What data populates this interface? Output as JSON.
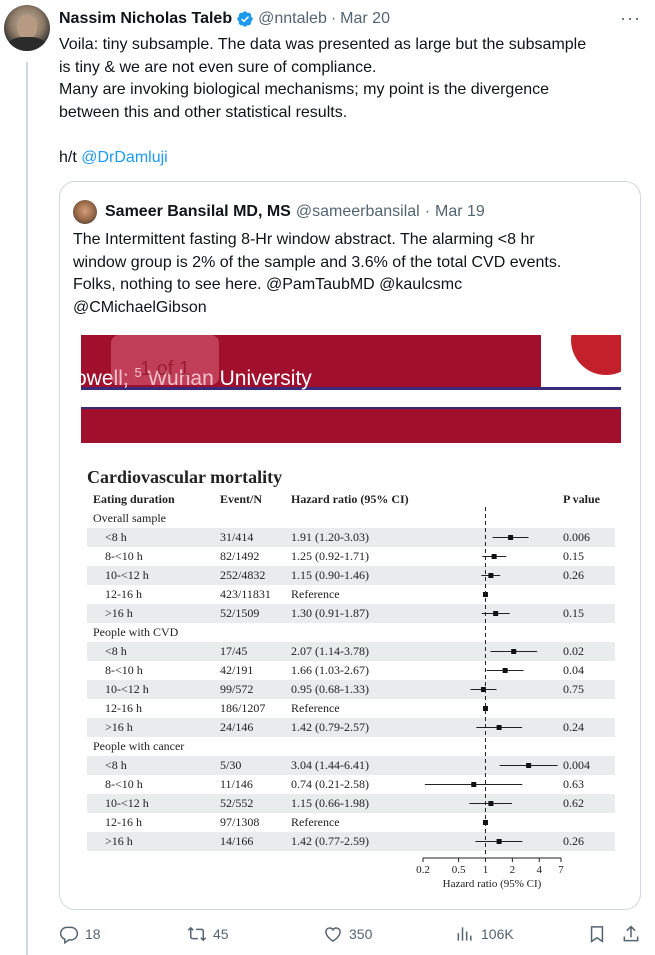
{
  "tweet": {
    "author_name": "Nassim Nicholas Taleb",
    "handle": "@nntaleb",
    "separator": "·",
    "date": "Mar 20",
    "more": "···",
    "lines": [
      "Voila: tiny subsample. The data was presented as large but the subsample",
      "is tiny & we are not even sure of compliance.",
      "Many are invoking biological mechanisms; my point is the divergence",
      "between this and other statistical results."
    ],
    "ht_prefix": "h/t ",
    "ht_mention": "@DrDamluji"
  },
  "quote": {
    "author_name": "Sameer Bansilal MD, MS",
    "handle": "@sameerbansilal",
    "separator": "·",
    "date": "Mar 19",
    "lines": [
      "The Intermittent fasting 8-Hr window abstract. The alarming <8 hr",
      "window group is 2% of the sample and 3.6% of the total CVD events.",
      "Folks, nothing to see here. @PamTaubMD @kaulcsmc",
      "@CMichaelGibson"
    ]
  },
  "figure": {
    "banner_text_pre": "owell; ",
    "banner_sup": "5",
    "banner_text_post": " Wuhan University",
    "page_indicator": "1 of 1",
    "accent": "#a0102d"
  },
  "chart_data": {
    "type": "forest",
    "title": "Cardiovascular mortality",
    "headers": {
      "eating_duration": "Eating duration",
      "event_n": "Event/N",
      "hazard_ratio": "Hazard ratio (95% CI)",
      "p_value": "P value"
    },
    "xlabel": "Hazard ratio (95% CI)",
    "x_scale": "log",
    "xlim": [
      0.2,
      7
    ],
    "x_ticks": [
      "0.2",
      "0.5",
      "1",
      "2",
      "4",
      "7"
    ],
    "reference_line": 1,
    "groups": [
      {
        "name": "Overall sample",
        "rows": [
          {
            "duration": "<8 h",
            "events": "31/414",
            "hr_text": "1.91 (1.20-3.03)",
            "hr": 1.91,
            "lo": 1.2,
            "hi": 3.03,
            "p": "0.006"
          },
          {
            "duration": "8-<10 h",
            "events": "82/1492",
            "hr_text": "1.25 (0.92-1.71)",
            "hr": 1.25,
            "lo": 0.92,
            "hi": 1.71,
            "p": "0.15"
          },
          {
            "duration": "10-<12 h",
            "events": "252/4832",
            "hr_text": "1.15 (0.90-1.46)",
            "hr": 1.15,
            "lo": 0.9,
            "hi": 1.46,
            "p": "0.26"
          },
          {
            "duration": "12-16 h",
            "events": "423/11831",
            "hr_text": "Reference",
            "hr": 1,
            "lo": 1,
            "hi": 1,
            "p": ""
          },
          {
            "duration": ">16 h",
            "events": "52/1509",
            "hr_text": "1.30 (0.91-1.87)",
            "hr": 1.3,
            "lo": 0.91,
            "hi": 1.87,
            "p": "0.15"
          }
        ]
      },
      {
        "name": "People with CVD",
        "rows": [
          {
            "duration": "<8 h",
            "events": "17/45",
            "hr_text": "2.07 (1.14-3.78)",
            "hr": 2.07,
            "lo": 1.14,
            "hi": 3.78,
            "p": "0.02"
          },
          {
            "duration": "8-<10 h",
            "events": "42/191",
            "hr_text": "1.66 (1.03-2.67)",
            "hr": 1.66,
            "lo": 1.03,
            "hi": 2.67,
            "p": "0.04"
          },
          {
            "duration": "10-<12 h",
            "events": "99/572",
            "hr_text": "0.95 (0.68-1.33)",
            "hr": 0.95,
            "lo": 0.68,
            "hi": 1.33,
            "p": "0.75"
          },
          {
            "duration": "12-16 h",
            "events": "186/1207",
            "hr_text": "Reference",
            "hr": 1,
            "lo": 1,
            "hi": 1,
            "p": ""
          },
          {
            "duration": ">16 h",
            "events": "24/146",
            "hr_text": "1.42 (0.79-2.57)",
            "hr": 1.42,
            "lo": 0.79,
            "hi": 2.57,
            "p": "0.24"
          }
        ]
      },
      {
        "name": "People with cancer",
        "rows": [
          {
            "duration": "<8 h",
            "events": "5/30",
            "hr_text": "3.04 (1.44-6.41)",
            "hr": 3.04,
            "lo": 1.44,
            "hi": 6.41,
            "p": "0.004"
          },
          {
            "duration": "8-<10 h",
            "events": "11/146",
            "hr_text": "0.74 (0.21-2.58)",
            "hr": 0.74,
            "lo": 0.21,
            "hi": 2.58,
            "p": "0.63"
          },
          {
            "duration": "10-<12 h",
            "events": "52/552",
            "hr_text": "1.15 (0.66-1.98)",
            "hr": 1.15,
            "lo": 0.66,
            "hi": 1.98,
            "p": "0.62"
          },
          {
            "duration": "12-16 h",
            "events": "97/1308",
            "hr_text": "Reference",
            "hr": 1,
            "lo": 1,
            "hi": 1,
            "p": ""
          },
          {
            "duration": ">16 h",
            "events": "14/166",
            "hr_text": "1.42 (0.77-2.59)",
            "hr": 1.42,
            "lo": 0.77,
            "hi": 2.59,
            "p": "0.26"
          }
        ]
      }
    ]
  },
  "actions": {
    "reply_count": "18",
    "retweet_count": "45",
    "like_count": "350",
    "view_count": "106K"
  },
  "colors": {
    "text": "#0f1419",
    "muted": "#536471",
    "link": "#1d9bf0",
    "verified": "#1d9bf0",
    "border": "#cfd9de"
  }
}
